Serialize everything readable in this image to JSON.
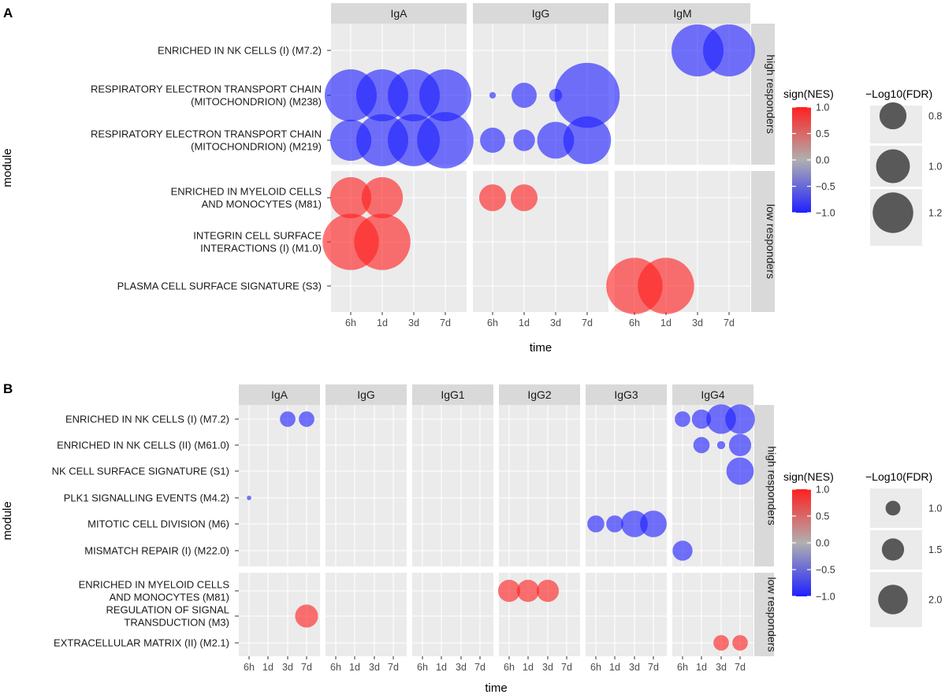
{
  "colors": {
    "positive": "#ff2020",
    "negative": "#2020ff",
    "neutral": "#b0b0b0",
    "panel_bg": "#ebebeb",
    "strip_bg": "#d9d9d9",
    "grid": "#ffffff",
    "legend_size_point": "#595959"
  },
  "chart_data": [
    {
      "panel": "A",
      "type": "scatter",
      "subtype": "bubble-facet-grid",
      "xlabel": "time",
      "ylabel": "module",
      "time_levels": [
        "6h",
        "1d",
        "3d",
        "7d"
      ],
      "columns": [
        "IgA",
        "IgG",
        "IgM"
      ],
      "row_groups": [
        {
          "label": "high responders",
          "modules": [
            {
              "id": "M7.2",
              "lines": [
                "ENRICHED IN NK CELLS (I) (M7.2)"
              ]
            },
            {
              "id": "M238",
              "lines": [
                "RESPIRATORY ELECTRON TRANSPORT CHAIN",
                "(MITOCHONDRION) (M238)"
              ]
            },
            {
              "id": "M219",
              "lines": [
                "RESPIRATORY ELECTRON TRANSPORT CHAIN",
                "(MITOCHONDRION) (M219)"
              ]
            }
          ]
        },
        {
          "label": "low responders",
          "modules": [
            {
              "id": "M81",
              "lines": [
                "ENRICHED IN MYELOID CELLS",
                "AND MONOCYTES (M81)"
              ]
            },
            {
              "id": "M1.0",
              "lines": [
                "INTEGRIN CELL SURFACE",
                "INTERACTIONS (I) (M1.0)"
              ]
            },
            {
              "id": "S3",
              "lines": [
                "PLASMA CELL SURFACE SIGNATURE (S3)"
              ]
            }
          ]
        }
      ],
      "points": [
        {
          "column": "IgM",
          "module": "M7.2",
          "time": "3d",
          "sign": -1,
          "size": 1.2
        },
        {
          "column": "IgM",
          "module": "M7.2",
          "time": "7d",
          "sign": -1,
          "size": 1.2
        },
        {
          "column": "IgA",
          "module": "M238",
          "time": "6h",
          "sign": -1,
          "size": 1.2
        },
        {
          "column": "IgA",
          "module": "M238",
          "time": "1d",
          "sign": -1,
          "size": 1.2
        },
        {
          "column": "IgA",
          "module": "M238",
          "time": "3d",
          "sign": -1,
          "size": 1.2
        },
        {
          "column": "IgA",
          "module": "M238",
          "time": "7d",
          "sign": -1,
          "size": 1.2
        },
        {
          "column": "IgG",
          "module": "M238",
          "time": "6h",
          "sign": -1,
          "size": 0.15
        },
        {
          "column": "IgG",
          "module": "M238",
          "time": "1d",
          "sign": -1,
          "size": 0.58
        },
        {
          "column": "IgG",
          "module": "M238",
          "time": "3d",
          "sign": -1,
          "size": 0.3
        },
        {
          "column": "IgG",
          "module": "M238",
          "time": "7d",
          "sign": -1,
          "size": 1.5
        },
        {
          "column": "IgA",
          "module": "M219",
          "time": "6h",
          "sign": -1,
          "size": 0.95
        },
        {
          "column": "IgA",
          "module": "M219",
          "time": "1d",
          "sign": -1,
          "size": 1.2
        },
        {
          "column": "IgA",
          "module": "M219",
          "time": "3d",
          "sign": -1,
          "size": 1.2
        },
        {
          "column": "IgA",
          "module": "M219",
          "time": "7d",
          "sign": -1,
          "size": 1.3
        },
        {
          "column": "IgG",
          "module": "M219",
          "time": "6h",
          "sign": -1,
          "size": 0.58
        },
        {
          "column": "IgG",
          "module": "M219",
          "time": "1d",
          "sign": -1,
          "size": 0.5
        },
        {
          "column": "IgG",
          "module": "M219",
          "time": "3d",
          "sign": -1,
          "size": 0.85
        },
        {
          "column": "IgG",
          "module": "M219",
          "time": "7d",
          "sign": -1,
          "size": 1.1
        },
        {
          "column": "IgA",
          "module": "M81",
          "time": "6h",
          "sign": 1,
          "size": 0.95
        },
        {
          "column": "IgA",
          "module": "M81",
          "time": "1d",
          "sign": 1,
          "size": 0.95
        },
        {
          "column": "IgG",
          "module": "M81",
          "time": "6h",
          "sign": 1,
          "size": 0.62
        },
        {
          "column": "IgG",
          "module": "M81",
          "time": "1d",
          "sign": 1,
          "size": 0.62
        },
        {
          "column": "IgA",
          "module": "M1.0",
          "time": "6h",
          "sign": 1,
          "size": 1.3
        },
        {
          "column": "IgA",
          "module": "M1.0",
          "time": "1d",
          "sign": 1,
          "size": 1.3
        },
        {
          "column": "IgM",
          "module": "S3",
          "time": "6h",
          "sign": 1,
          "size": 1.3
        },
        {
          "column": "IgM",
          "module": "S3",
          "time": "1d",
          "sign": 1,
          "size": 1.3
        }
      ],
      "color_legend": {
        "title": "sign(NES)",
        "ticks": [
          "1.0",
          "0.5",
          "0.0",
          "−0.5",
          "−1.0"
        ],
        "values": [
          1.0,
          0.5,
          0.0,
          -0.5,
          -1.0
        ],
        "range": [
          -1,
          1
        ]
      },
      "size_legend": {
        "title": "−Log10(FDR)",
        "labels": [
          "0.8",
          "1.0",
          "1.2"
        ],
        "values": [
          0.8,
          1.0,
          1.2
        ]
      }
    },
    {
      "panel": "B",
      "type": "scatter",
      "subtype": "bubble-facet-grid",
      "xlabel": "time",
      "ylabel": "module",
      "time_levels": [
        "6h",
        "1d",
        "3d",
        "7d"
      ],
      "columns": [
        "IgA",
        "IgG",
        "IgG1",
        "IgG2",
        "IgG3",
        "IgG4"
      ],
      "row_groups": [
        {
          "label": "high responders",
          "modules": [
            {
              "id": "M7.2",
              "lines": [
                "ENRICHED IN NK CELLS (I) (M7.2)"
              ]
            },
            {
              "id": "M61.0",
              "lines": [
                "ENRICHED IN NK CELLS (II) (M61.0)"
              ]
            },
            {
              "id": "S1",
              "lines": [
                "NK CELL SURFACE SIGNATURE (S1)"
              ]
            },
            {
              "id": "M4.2",
              "lines": [
                "PLK1 SIGNALLING EVENTS (M4.2)"
              ]
            },
            {
              "id": "M6",
              "lines": [
                "MITOTIC CELL DIVISION (M6)"
              ]
            },
            {
              "id": "M22.0",
              "lines": [
                "MISMATCH REPAIR (I) (M22.0)"
              ]
            }
          ]
        },
        {
          "label": "low responders",
          "modules": [
            {
              "id": "M81",
              "lines": [
                "ENRICHED IN MYELOID CELLS",
                "AND MONOCYTES (M81)"
              ]
            },
            {
              "id": "M3",
              "lines": [
                "REGULATION OF SIGNAL",
                "TRANSDUCTION (M3)"
              ]
            },
            {
              "id": "M2.1",
              "lines": [
                "EXTRACELLULAR MATRIX (II) (M2.1)"
              ]
            }
          ]
        }
      ],
      "points": [
        {
          "column": "IgA",
          "module": "M7.2",
          "time": "3d",
          "sign": -1,
          "size": 1.05
        },
        {
          "column": "IgA",
          "module": "M7.2",
          "time": "7d",
          "sign": -1,
          "size": 1.05
        },
        {
          "column": "IgG4",
          "module": "M7.2",
          "time": "6h",
          "sign": -1,
          "size": 1.05
        },
        {
          "column": "IgG4",
          "module": "M7.2",
          "time": "1d",
          "sign": -1,
          "size": 1.3
        },
        {
          "column": "IgG4",
          "module": "M7.2",
          "time": "3d",
          "sign": -1,
          "size": 2.0
        },
        {
          "column": "IgG4",
          "module": "M7.2",
          "time": "7d",
          "sign": -1,
          "size": 2.0
        },
        {
          "column": "IgG4",
          "module": "M61.0",
          "time": "1d",
          "sign": -1,
          "size": 1.1
        },
        {
          "column": "IgG4",
          "module": "M61.0",
          "time": "3d",
          "sign": -1,
          "size": 0.55
        },
        {
          "column": "IgG4",
          "module": "M61.0",
          "time": "7d",
          "sign": -1,
          "size": 1.5
        },
        {
          "column": "IgG4",
          "module": "S1",
          "time": "7d",
          "sign": -1,
          "size": 1.85
        },
        {
          "column": "IgA",
          "module": "M4.2",
          "time": "6h",
          "sign": -1,
          "size": 0.3
        },
        {
          "column": "IgG3",
          "module": "M6",
          "time": "6h",
          "sign": -1,
          "size": 1.15
        },
        {
          "column": "IgG3",
          "module": "M6",
          "time": "1d",
          "sign": -1,
          "size": 1.15
        },
        {
          "column": "IgG3",
          "module": "M6",
          "time": "3d",
          "sign": -1,
          "size": 1.8
        },
        {
          "column": "IgG3",
          "module": "M6",
          "time": "7d",
          "sign": -1,
          "size": 1.8
        },
        {
          "column": "IgG4",
          "module": "M22.0",
          "time": "6h",
          "sign": -1,
          "size": 1.35
        },
        {
          "column": "IgG2",
          "module": "M81",
          "time": "6h",
          "sign": 1,
          "size": 1.5
        },
        {
          "column": "IgG2",
          "module": "M81",
          "time": "1d",
          "sign": 1,
          "size": 1.5
        },
        {
          "column": "IgG2",
          "module": "M81",
          "time": "3d",
          "sign": 1,
          "size": 1.5
        },
        {
          "column": "IgA",
          "module": "M3",
          "time": "7d",
          "sign": 1,
          "size": 1.55
        },
        {
          "column": "IgG4",
          "module": "M2.1",
          "time": "3d",
          "sign": 1,
          "size": 1.05
        },
        {
          "column": "IgG4",
          "module": "M2.1",
          "time": "7d",
          "sign": 1,
          "size": 1.05
        }
      ],
      "color_legend": {
        "title": "sign(NES)",
        "ticks": [
          "1.0",
          "0.5",
          "0.0",
          "−0.5",
          "−1.0"
        ],
        "values": [
          1.0,
          0.5,
          0.0,
          -0.5,
          -1.0
        ],
        "range": [
          -1,
          1
        ]
      },
      "size_legend": {
        "title": "−Log10(FDR)",
        "labels": [
          "1.0",
          "1.5",
          "2.0"
        ],
        "values": [
          1.0,
          1.5,
          2.0
        ]
      }
    }
  ]
}
